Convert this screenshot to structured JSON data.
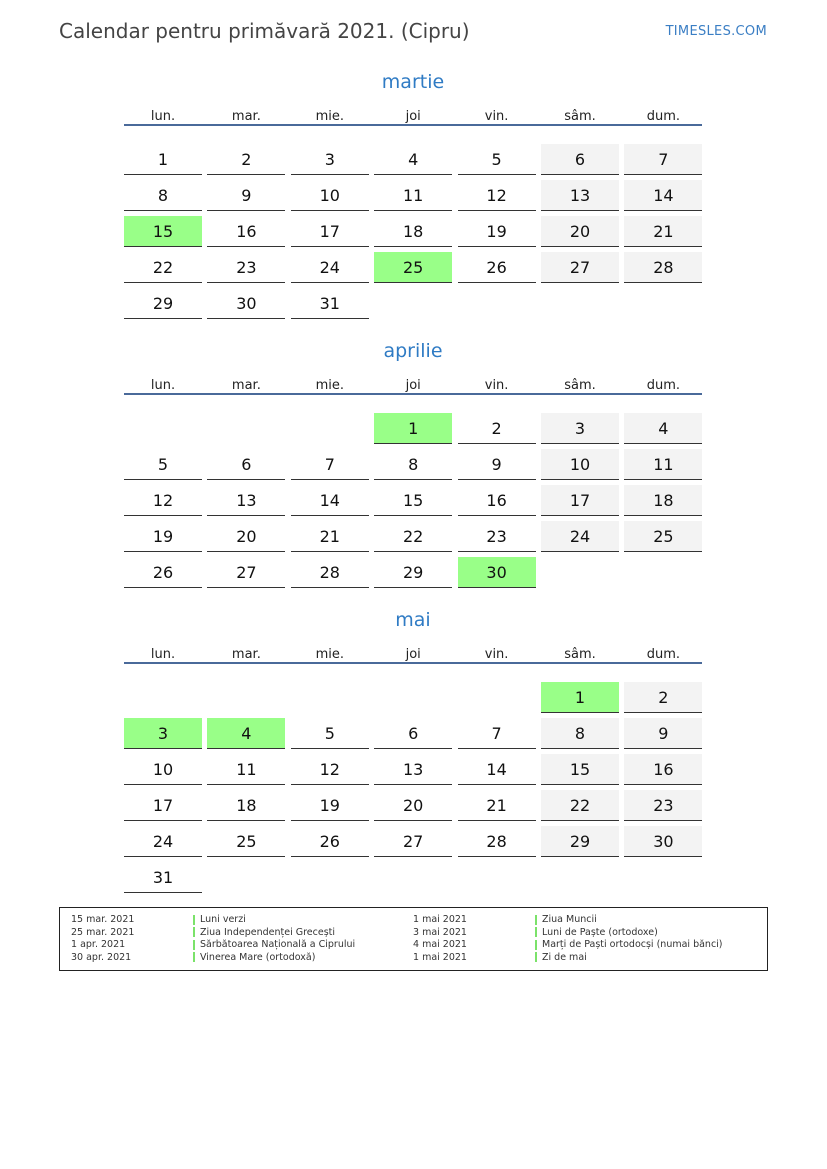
{
  "header": {
    "title": "Calendar pentru primăvară 2021. (Cipru)",
    "brand": "TIMESLES.COM"
  },
  "weekdays": [
    "lun.",
    "mar.",
    "mie.",
    "joi",
    "vin.",
    "sâm.",
    "dum."
  ],
  "colors": {
    "holiday": "#99ff88",
    "weekend": "#f3f3f3",
    "month_title": "#2f7bc4",
    "header_line": "#4a6a9a"
  },
  "months": [
    {
      "name": "martie",
      "weeks": [
        [
          1,
          2,
          3,
          4,
          5,
          6,
          7
        ],
        [
          8,
          9,
          10,
          11,
          12,
          13,
          14
        ],
        [
          15,
          16,
          17,
          18,
          19,
          20,
          21
        ],
        [
          22,
          23,
          24,
          25,
          26,
          27,
          28
        ],
        [
          29,
          30,
          31,
          null,
          null,
          null,
          null
        ]
      ],
      "holidays": [
        15,
        25
      ]
    },
    {
      "name": "aprilie",
      "weeks": [
        [
          null,
          null,
          null,
          1,
          2,
          3,
          4
        ],
        [
          5,
          6,
          7,
          8,
          9,
          10,
          11
        ],
        [
          12,
          13,
          14,
          15,
          16,
          17,
          18
        ],
        [
          19,
          20,
          21,
          22,
          23,
          24,
          25
        ],
        [
          26,
          27,
          28,
          29,
          30,
          null,
          null
        ]
      ],
      "holidays": [
        1,
        30
      ]
    },
    {
      "name": "mai",
      "weeks": [
        [
          null,
          null,
          null,
          null,
          null,
          1,
          2
        ],
        [
          3,
          4,
          5,
          6,
          7,
          8,
          9
        ],
        [
          10,
          11,
          12,
          13,
          14,
          15,
          16
        ],
        [
          17,
          18,
          19,
          20,
          21,
          22,
          23
        ],
        [
          24,
          25,
          26,
          27,
          28,
          29,
          30
        ],
        [
          31,
          null,
          null,
          null,
          null,
          null,
          null
        ]
      ],
      "holidays": [
        1,
        3,
        4
      ]
    }
  ],
  "legend": [
    {
      "date": "15 mar. 2021",
      "name": "Luni verzi"
    },
    {
      "date": "25 mar. 2021",
      "name": "Ziua Independenței Grecești"
    },
    {
      "date": "1 apr. 2021",
      "name": "Sărbătoarea Națională a Ciprului"
    },
    {
      "date": "30 apr. 2021",
      "name": "Vinerea Mare (ortodoxă)"
    },
    {
      "date": "1 mai 2021",
      "name": "Ziua Muncii"
    },
    {
      "date": "3 mai 2021",
      "name": "Luni de Paște (ortodoxe)"
    },
    {
      "date": "4 mai 2021",
      "name": "Marți de Paști ortodocși (numai bănci)"
    },
    {
      "date": "1 mai 2021",
      "name": "Zi de mai"
    }
  ]
}
